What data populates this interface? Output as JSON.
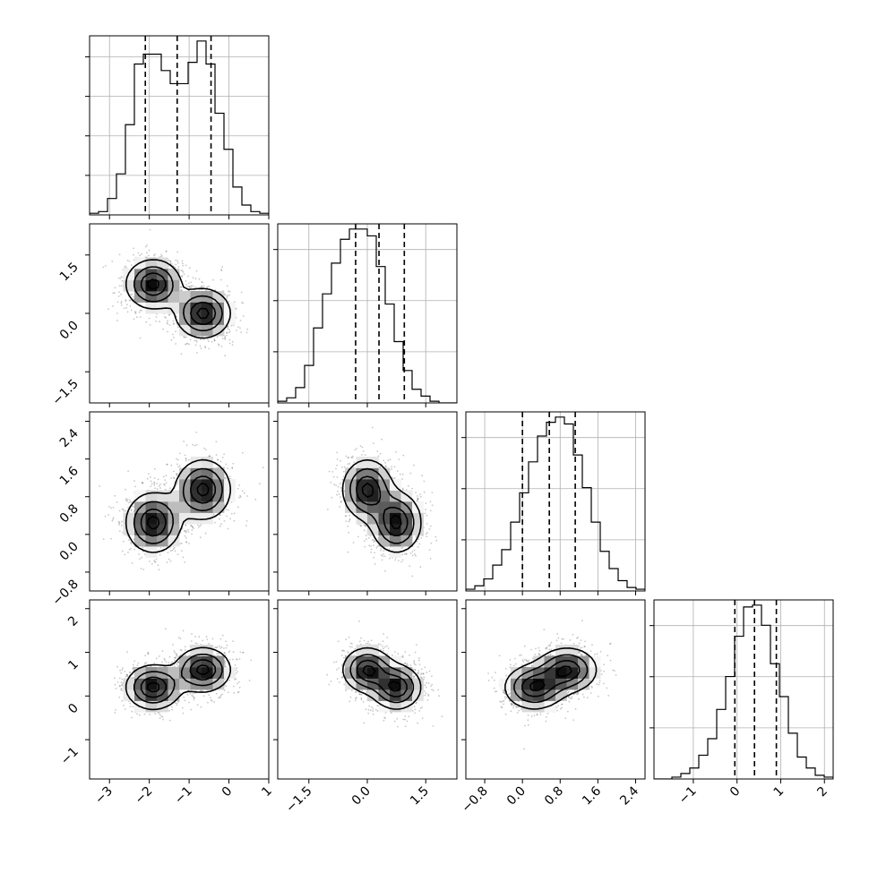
{
  "chart_data": {
    "type": "corner",
    "parameters": [
      {
        "key": "p0",
        "range": [
          -3.5,
          1.0
        ],
        "ticks": [
          -3,
          -2,
          -1,
          0,
          1
        ],
        "tick_labels": [
          "−3",
          "−2",
          "−1",
          "0",
          "1"
        ],
        "quantiles": [
          -2.1,
          -1.3,
          -0.45
        ]
      },
      {
        "key": "p1",
        "range": [
          -2.3,
          2.3
        ],
        "ticks": [
          -1.5,
          0.0,
          1.5
        ],
        "tick_labels": [
          "−1.5",
          "0.0",
          "1.5"
        ],
        "quantiles": [
          -0.3,
          0.3,
          0.95
        ]
      },
      {
        "key": "p2",
        "range": [
          -1.2,
          2.6
        ],
        "ticks": [
          -0.8,
          0.0,
          0.8,
          1.6,
          2.4
        ],
        "tick_labels": [
          "−0.8",
          "0.0",
          "0.8",
          "1.6",
          "2.4"
        ],
        "quantiles": [
          0.0,
          0.57,
          1.12
        ]
      },
      {
        "key": "p3",
        "range": [
          -1.9,
          2.2
        ],
        "ticks": [
          -1,
          0,
          1,
          2
        ],
        "tick_labels": [
          "−1",
          "0",
          "1",
          "2"
        ],
        "quantiles": [
          -0.05,
          0.4,
          0.9
        ]
      }
    ],
    "histograms": [
      {
        "bin_start": -3.5,
        "bin_width": 0.225,
        "counts": [
          1,
          2,
          10,
          25,
          55,
          92,
          98,
          98,
          88,
          80,
          80,
          93,
          106,
          92,
          62,
          40,
          17,
          6,
          2,
          1
        ]
      },
      {
        "bin_start": -2.3,
        "bin_width": 0.23,
        "counts": [
          1,
          3,
          9,
          22,
          44,
          64,
          82,
          96,
          102,
          102,
          98,
          80,
          58,
          36,
          19,
          8,
          4,
          1,
          0,
          0
        ]
      },
      {
        "bin_start": -1.2,
        "bin_width": 0.19,
        "counts": [
          1,
          3,
          7,
          15,
          24,
          40,
          57,
          75,
          90,
          98,
          101,
          97,
          79,
          60,
          40,
          23,
          13,
          6,
          2,
          1
        ]
      },
      {
        "bin_start": -1.9,
        "bin_width": 0.205,
        "counts": [
          0,
          0,
          1,
          3,
          6,
          13,
          22,
          38,
          56,
          78,
          94,
          95,
          84,
          63,
          45,
          25,
          12,
          6,
          2,
          1
        ]
      }
    ],
    "components": [
      {
        "weight": 0.5,
        "mean": [
          -1.9,
          0.75,
          0.25,
          0.2
        ],
        "sd": [
          0.38,
          0.35,
          0.35,
          0.28
        ]
      },
      {
        "weight": 0.5,
        "mean": [
          -0.65,
          0.0,
          0.95,
          0.6
        ],
        "sd": [
          0.38,
          0.35,
          0.35,
          0.28
        ]
      }
    ],
    "contour_levels": [
      0.2,
      0.45,
      0.72,
      0.93
    ],
    "grid": true,
    "legend": "none"
  }
}
